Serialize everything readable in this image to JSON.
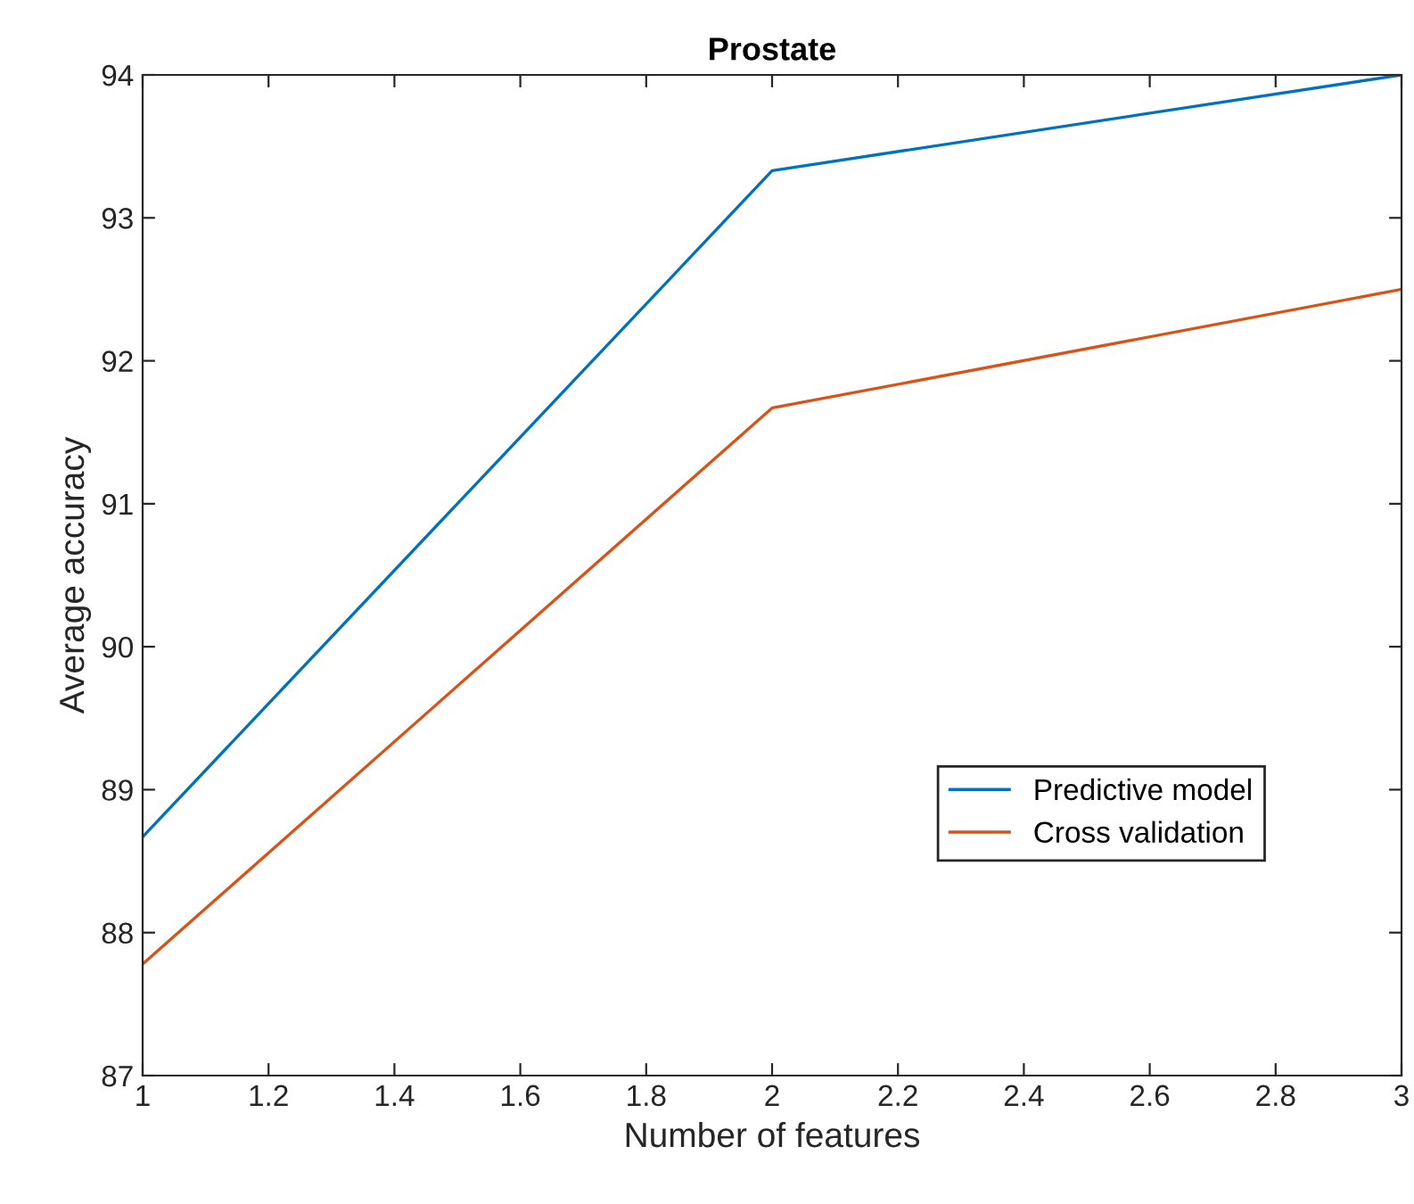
{
  "chart_data": {
    "type": "line",
    "title": "Prostate",
    "xlabel": "Number of features",
    "ylabel": "Average accuracy",
    "x": [
      1,
      2,
      3
    ],
    "series": [
      {
        "name": "Predictive model",
        "color": "#0072bd",
        "values": [
          88.67,
          93.33,
          94
        ]
      },
      {
        "name": "Cross validation",
        "color": "#d95319",
        "values": [
          87.78,
          91.67,
          92.5
        ]
      }
    ],
    "xlim": [
      1,
      3
    ],
    "xticks": [
      1,
      1.2,
      1.4,
      1.6,
      1.8,
      2,
      2.2,
      2.4,
      2.6,
      2.8,
      3
    ],
    "ylim": [
      87,
      94
    ],
    "yticks": [
      87,
      88,
      89,
      90,
      91,
      92,
      93,
      94
    ],
    "grid": false,
    "legend": "right",
    "marker": "none",
    "line_style": "solid"
  }
}
